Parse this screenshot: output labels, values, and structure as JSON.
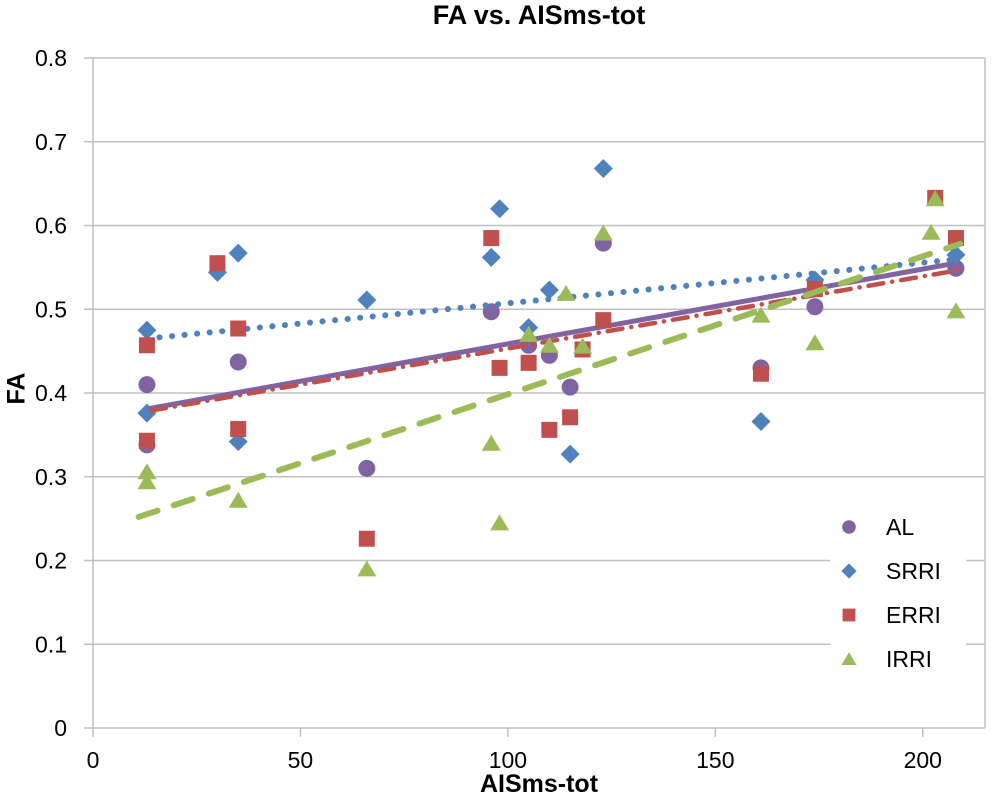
{
  "chart_data": {
    "type": "scatter",
    "title": "FA vs. AISms-tot",
    "xlabel": "AISms-tot",
    "ylabel": "FA",
    "xlim": [
      0,
      215
    ],
    "ylim": [
      0,
      0.8
    ],
    "x_ticks": [
      0,
      50,
      100,
      150,
      200
    ],
    "x_tick_labels": [
      "0",
      "50",
      "100",
      "150",
      "200"
    ],
    "y_ticks": [
      0,
      0.1,
      0.2,
      0.3,
      0.4,
      0.5,
      0.6,
      0.7,
      0.8
    ],
    "y_tick_labels": [
      "0",
      "0.1",
      "0.2",
      "0.3",
      "0.4",
      "0.5",
      "0.6",
      "0.7",
      "0.8"
    ],
    "grid": "horizontal",
    "legend_position": "inside-right-lower",
    "colors": {
      "gridline": "#c0c0c0",
      "axis_text": "#000000",
      "background": "#ffffff"
    },
    "series": [
      {
        "name": "AL",
        "marker": "circle",
        "color": "#8064A2",
        "points": [
          [
            13,
            0.41
          ],
          [
            13,
            0.338
          ],
          [
            35,
            0.437
          ],
          [
            66,
            0.31
          ],
          [
            96,
            0.497
          ],
          [
            105,
            0.457
          ],
          [
            110,
            0.445
          ],
          [
            115,
            0.407
          ],
          [
            123,
            0.579
          ],
          [
            161,
            0.43
          ],
          [
            174,
            0.503
          ],
          [
            208,
            0.549
          ]
        ],
        "trend": {
          "style": "solid",
          "x1": 13,
          "y1": 0.381,
          "x2": 209,
          "y2": 0.556
        }
      },
      {
        "name": "SRRI",
        "marker": "diamond",
        "color": "#4F81BD",
        "points": [
          [
            13,
            0.475
          ],
          [
            13,
            0.376
          ],
          [
            30,
            0.544
          ],
          [
            35,
            0.567
          ],
          [
            35,
            0.342
          ],
          [
            66,
            0.511
          ],
          [
            96,
            0.562
          ],
          [
            98,
            0.62
          ],
          [
            105,
            0.478
          ],
          [
            110,
            0.523
          ],
          [
            115,
            0.327
          ],
          [
            123,
            0.668
          ],
          [
            161,
            0.366
          ],
          [
            174,
            0.535
          ],
          [
            208,
            0.565
          ]
        ],
        "trend": {
          "style": "dotted",
          "x1": 13,
          "y1": 0.465,
          "x2": 207,
          "y2": 0.559
        }
      },
      {
        "name": "ERRI",
        "marker": "square",
        "color": "#C0504D",
        "points": [
          [
            13,
            0.457
          ],
          [
            13,
            0.343
          ],
          [
            30,
            0.555
          ],
          [
            35,
            0.477
          ],
          [
            35,
            0.357
          ],
          [
            66,
            0.226
          ],
          [
            96,
            0.585
          ],
          [
            98,
            0.43
          ],
          [
            105,
            0.436
          ],
          [
            110,
            0.356
          ],
          [
            115,
            0.371
          ],
          [
            118,
            0.452
          ],
          [
            123,
            0.487
          ],
          [
            161,
            0.423
          ],
          [
            174,
            0.524
          ],
          [
            203,
            0.633
          ],
          [
            208,
            0.585
          ]
        ],
        "trend": {
          "style": "dashdot",
          "x1": 14,
          "y1": 0.379,
          "x2": 209,
          "y2": 0.547
        }
      },
      {
        "name": "IRRI",
        "marker": "triangle",
        "color": "#9BBB59",
        "points": [
          [
            13,
            0.306
          ],
          [
            13,
            0.294
          ],
          [
            35,
            0.272
          ],
          [
            66,
            0.19
          ],
          [
            96,
            0.34
          ],
          [
            98,
            0.245
          ],
          [
            105,
            0.47
          ],
          [
            110,
            0.457
          ],
          [
            114,
            0.519
          ],
          [
            118,
            0.456
          ],
          [
            123,
            0.591
          ],
          [
            161,
            0.493
          ],
          [
            174,
            0.46
          ],
          [
            202,
            0.592
          ],
          [
            203,
            0.632
          ],
          [
            208,
            0.498
          ]
        ],
        "trend": {
          "style": "dashed",
          "x1": 11,
          "y1": 0.252,
          "x2": 209,
          "y2": 0.578
        }
      }
    ]
  }
}
